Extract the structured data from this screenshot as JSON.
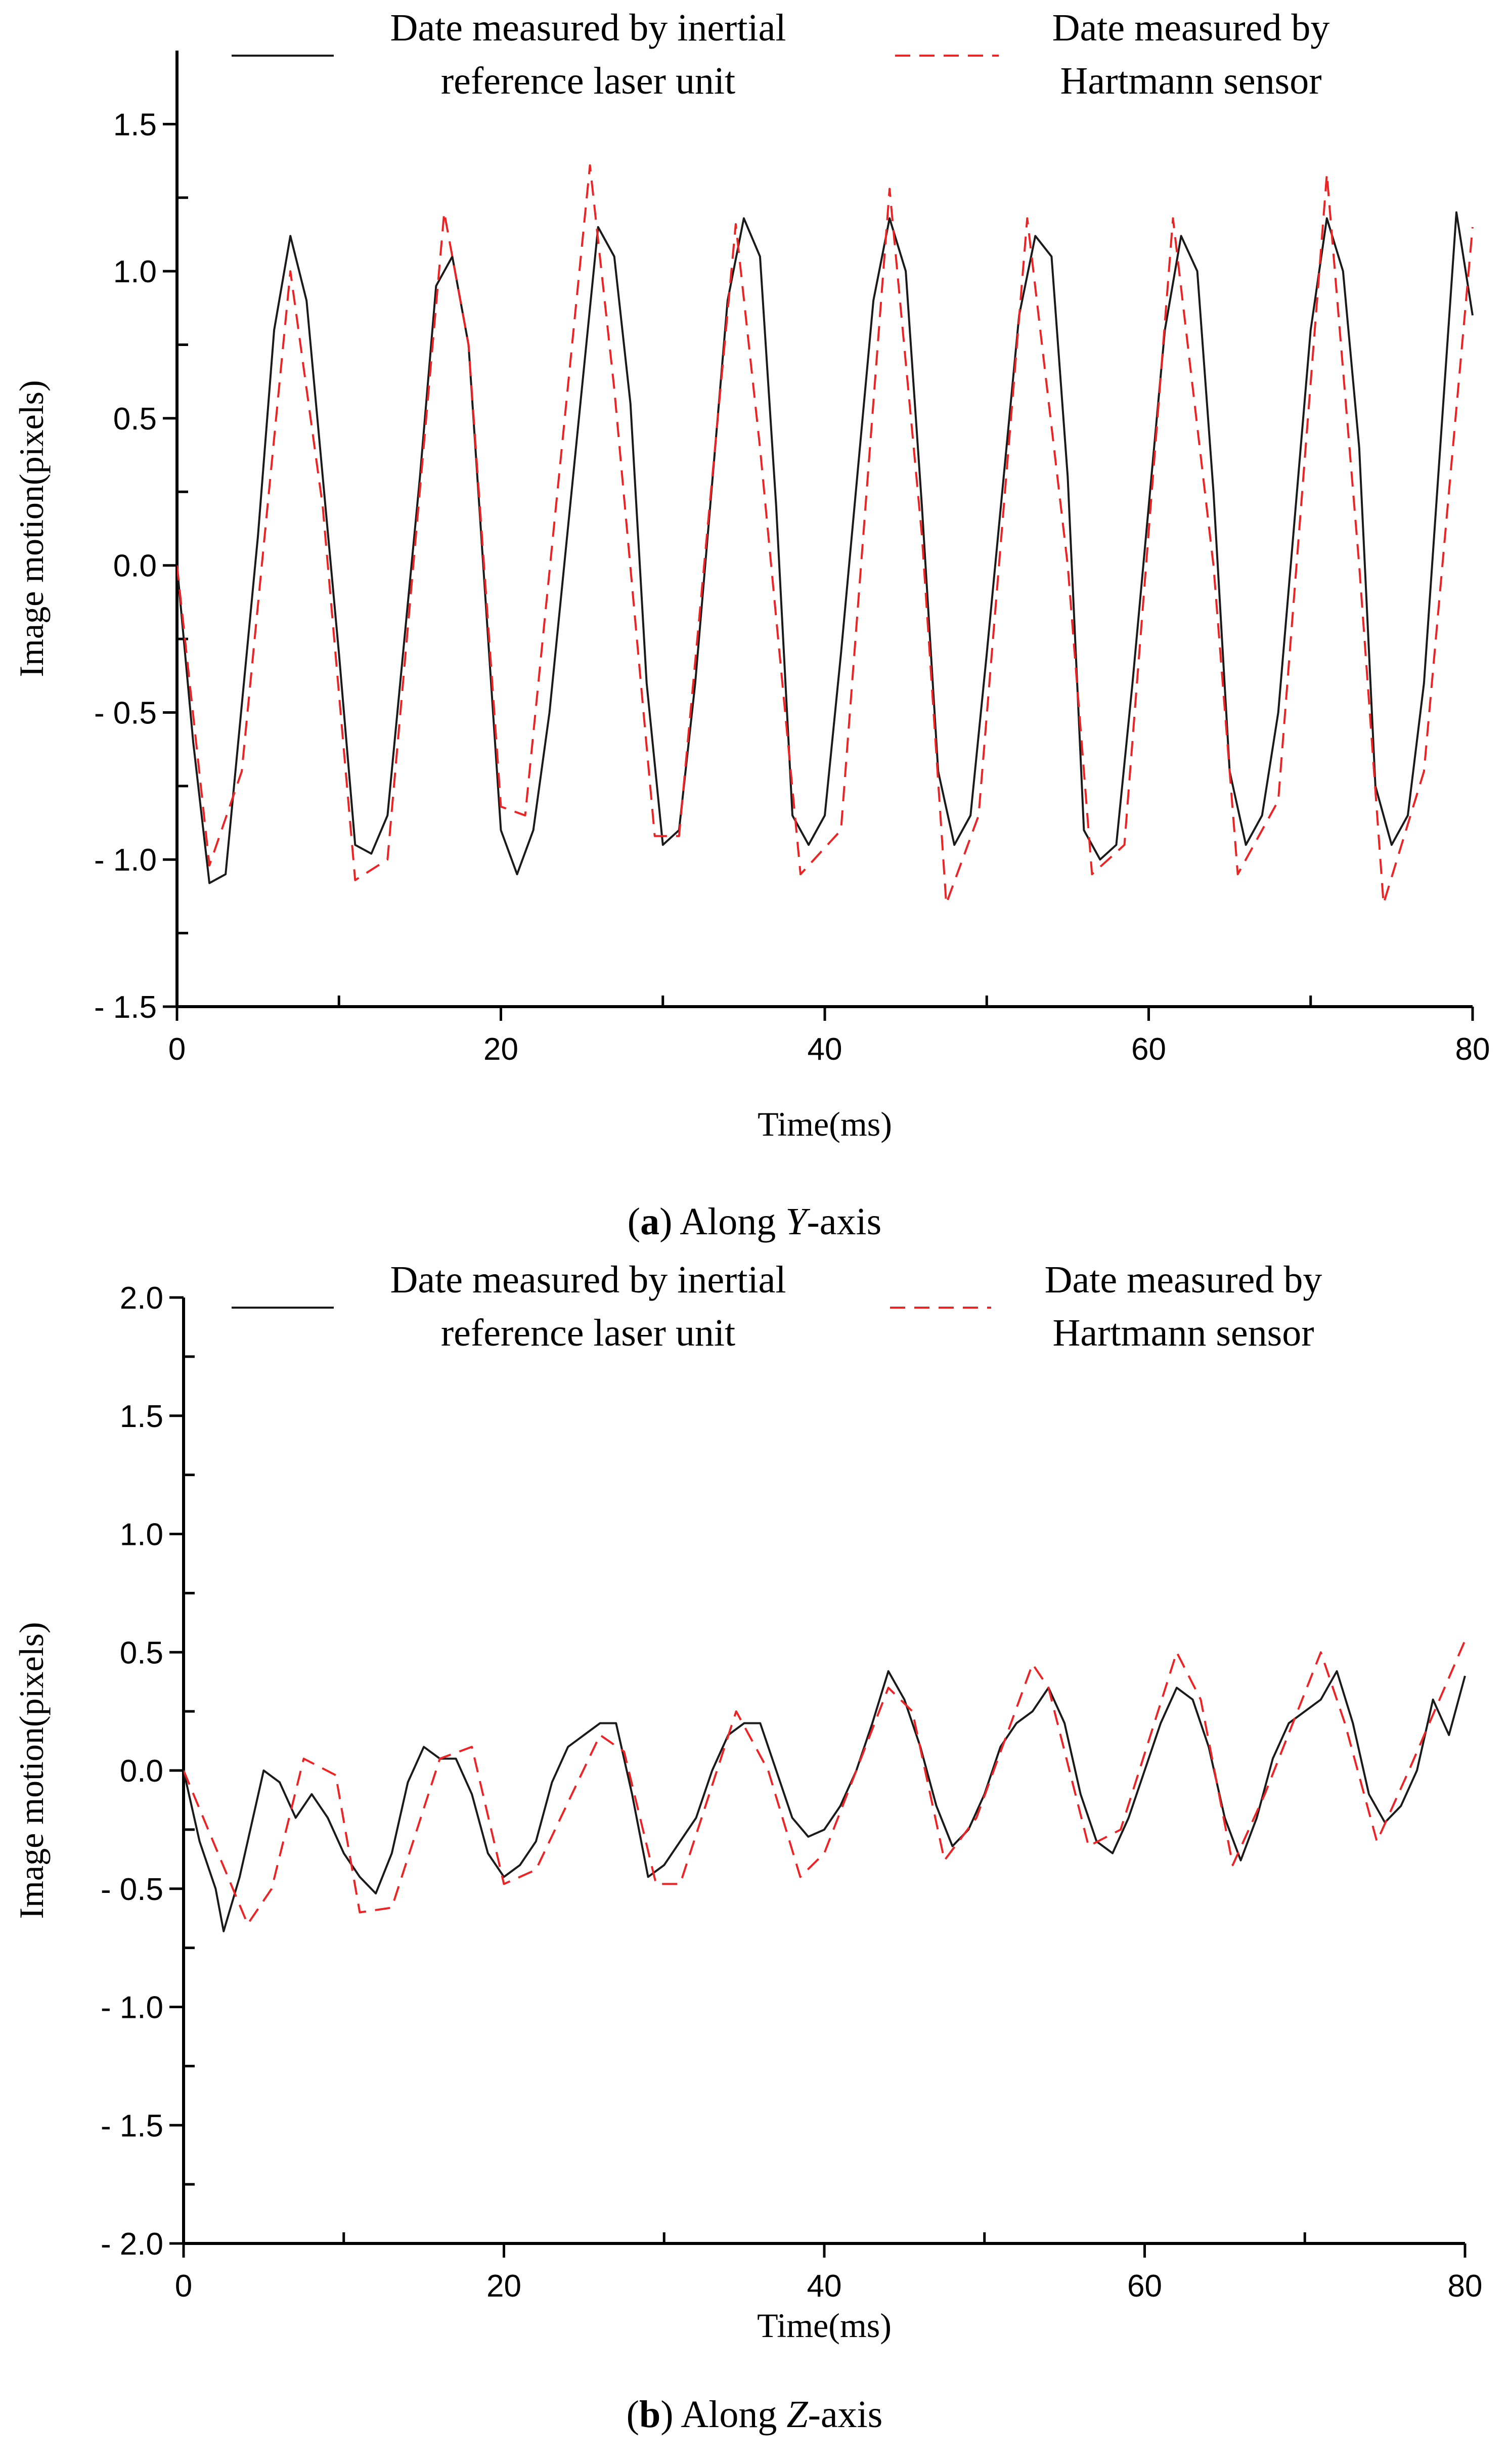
{
  "chart_data": [
    {
      "type": "line",
      "caption": {
        "label": "a",
        "text": " Along ",
        "axis": "Y",
        "suffix": "-axis"
      },
      "xlabel": "Time(ms)",
      "ylabel": "Image motion(pixels)",
      "xlim": [
        0,
        80
      ],
      "ylim": [
        -1.5,
        1.75
      ],
      "x_ticks": [
        0,
        20,
        40,
        60,
        80
      ],
      "x_tick_labels": [
        "0",
        "20",
        "40",
        "60",
        "80"
      ],
      "y_ticks": [
        -1.5,
        -1.0,
        -0.5,
        0.0,
        0.5,
        1.0,
        1.5
      ],
      "y_tick_labels": [
        "- 1.5",
        "- 1.0",
        "- 0.5",
        "0.0",
        "0.5",
        "1.0",
        "1.5"
      ],
      "legend": [
        {
          "name": "Date measured by inertial reference laser unit",
          "lines": [
            "Date measured by inertial",
            "reference laser unit"
          ],
          "color": "#1a1a1a",
          "style": "solid"
        },
        {
          "name": "Date measured by Hartmann sensor",
          "lines": [
            "Date measured by",
            "Hartmann sensor"
          ],
          "color": "#ee2222",
          "style": "dashed"
        }
      ],
      "series": [
        {
          "name": "Date measured by inertial reference laser unit",
          "color": "#1a1a1a",
          "x": [
            0,
            1,
            2,
            3,
            5,
            6,
            7,
            8,
            10,
            11,
            12,
            13,
            15,
            16,
            17,
            18,
            20,
            21,
            22,
            23,
            25,
            26,
            27,
            28,
            29,
            30,
            31,
            32,
            34,
            35,
            36,
            37,
            38,
            39,
            40,
            41,
            43,
            44,
            45,
            46,
            47,
            48,
            49,
            50,
            52,
            53,
            54,
            55,
            56,
            57,
            58,
            59,
            61,
            62,
            63,
            64,
            65,
            66,
            67,
            68,
            70,
            71,
            72,
            73,
            74,
            75,
            76,
            77,
            79,
            80
          ],
          "y": [
            0.0,
            -0.6,
            -1.08,
            -1.05,
            0.1,
            0.8,
            1.12,
            0.9,
            -0.3,
            -0.95,
            -0.98,
            -0.85,
            0.3,
            0.95,
            1.05,
            0.75,
            -0.9,
            -1.05,
            -0.9,
            -0.5,
            0.6,
            1.15,
            1.05,
            0.55,
            -0.4,
            -0.95,
            -0.9,
            -0.4,
            0.9,
            1.18,
            1.05,
            0.2,
            -0.85,
            -0.95,
            -0.85,
            -0.3,
            0.9,
            1.18,
            1.0,
            0.2,
            -0.7,
            -0.95,
            -0.85,
            -0.3,
            0.85,
            1.12,
            1.05,
            0.3,
            -0.9,
            -1.0,
            -0.95,
            -0.4,
            0.8,
            1.12,
            1.0,
            0.25,
            -0.7,
            -0.95,
            -0.85,
            -0.5,
            0.8,
            1.18,
            1.0,
            0.4,
            -0.75,
            -0.95,
            -0.85,
            -0.4,
            1.2,
            0.85
          ]
        },
        {
          "name": "Date measured by Hartmann sensor",
          "color": "#ee2222",
          "x": [
            0,
            2,
            4,
            7,
            9,
            11,
            13,
            16.5,
            18,
            20,
            21.5,
            25.5,
            27,
            29.5,
            31,
            34.5,
            36,
            38.5,
            41,
            44,
            46,
            47.5,
            49.5,
            52.5,
            55,
            56.5,
            58.5,
            61.5,
            64,
            65.5,
            68,
            71,
            73,
            74.5,
            77,
            80
          ],
          "y": [
            0.0,
            -1.02,
            -0.7,
            1.0,
            0.2,
            -1.07,
            -1.0,
            1.2,
            0.75,
            -0.82,
            -0.85,
            1.36,
            0.6,
            -0.92,
            -0.92,
            1.16,
            0.4,
            -1.05,
            -0.9,
            1.28,
            0.1,
            -1.15,
            -0.85,
            1.18,
            0.0,
            -1.05,
            -0.95,
            1.18,
            0.0,
            -1.05,
            -0.8,
            1.33,
            0.0,
            -1.15,
            -0.7,
            1.15
          ]
        }
      ]
    },
    {
      "type": "line",
      "caption": {
        "label": "b",
        "text": " Along ",
        "axis": "Z",
        "suffix": "-axis"
      },
      "xlabel": "Time(ms)",
      "ylabel": "Image motion(pixels)",
      "xlim": [
        0,
        80
      ],
      "ylim": [
        -2.0,
        2.0
      ],
      "x_ticks": [
        0,
        20,
        40,
        60,
        80
      ],
      "x_tick_labels": [
        "0",
        "20",
        "40",
        "60",
        "80"
      ],
      "y_ticks": [
        -2.0,
        -1.5,
        -1.0,
        -0.5,
        0.0,
        0.5,
        1.0,
        1.5,
        2.0
      ],
      "y_tick_labels": [
        "- 2.0",
        "- 1.5",
        "- 1.0",
        "- 0.5",
        "0.0",
        "0.5",
        "1.0",
        "1.5",
        "2.0"
      ],
      "legend": [
        {
          "name": "Date measured by inertial reference laser unit",
          "lines": [
            "Date measured by inertial",
            "reference laser unit"
          ],
          "color": "#1a1a1a",
          "style": "solid"
        },
        {
          "name": "Date measured by Hartmann sensor",
          "lines": [
            "Date measured by",
            "Hartmann sensor"
          ],
          "color": "#ee2222",
          "style": "dashed"
        }
      ],
      "series": [
        {
          "name": "Date measured by inertial reference laser unit",
          "color": "#1a1a1a",
          "x": [
            0,
            1,
            2,
            2.5,
            3.5,
            5,
            6,
            7,
            8,
            9,
            10,
            11,
            12,
            13,
            14,
            15,
            16,
            17,
            18,
            19,
            20,
            21,
            22,
            23,
            24,
            25,
            26,
            27,
            28,
            29,
            30,
            31,
            32,
            33,
            34,
            35,
            36,
            37,
            38,
            39,
            40,
            41,
            42,
            43,
            44,
            45,
            46,
            47,
            48,
            49,
            50,
            51,
            52,
            53,
            54,
            55,
            56,
            57,
            58,
            59,
            60,
            61,
            62,
            63,
            64,
            65,
            66,
            67,
            68,
            69,
            70,
            71,
            72,
            73,
            74,
            75,
            76,
            77,
            78,
            79,
            80
          ],
          "y": [
            0.0,
            -0.3,
            -0.5,
            -0.68,
            -0.45,
            0.0,
            -0.05,
            -0.2,
            -0.1,
            -0.2,
            -0.35,
            -0.45,
            -0.52,
            -0.35,
            -0.05,
            0.1,
            0.05,
            0.05,
            -0.1,
            -0.35,
            -0.45,
            -0.4,
            -0.3,
            -0.05,
            0.1,
            0.15,
            0.2,
            0.2,
            -0.1,
            -0.45,
            -0.4,
            -0.3,
            -0.2,
            0.0,
            0.15,
            0.2,
            0.2,
            0.0,
            -0.2,
            -0.28,
            -0.25,
            -0.15,
            0.0,
            0.2,
            0.42,
            0.3,
            0.1,
            -0.15,
            -0.32,
            -0.25,
            -0.1,
            0.1,
            0.2,
            0.25,
            0.35,
            0.2,
            -0.1,
            -0.3,
            -0.35,
            -0.2,
            0.0,
            0.2,
            0.35,
            0.3,
            0.1,
            -0.2,
            -0.38,
            -0.2,
            0.05,
            0.2,
            0.25,
            0.3,
            0.42,
            0.2,
            -0.1,
            -0.22,
            -0.15,
            0.0,
            0.3,
            0.15,
            0.4
          ]
        },
        {
          "name": "Date measured by Hartmann sensor",
          "color": "#ee2222",
          "x": [
            0,
            4,
            5.5,
            7.5,
            9.5,
            11,
            13,
            16,
            18,
            20,
            22,
            26,
            27.5,
            29.5,
            31,
            34.5,
            36.5,
            38.5,
            40,
            44,
            45.5,
            47.5,
            49.5,
            53,
            54,
            56.5,
            58.5,
            62,
            63.5,
            65.5,
            67.5,
            71,
            72.5,
            74.5,
            76.5,
            80
          ],
          "y": [
            0.0,
            -0.65,
            -0.5,
            0.05,
            -0.02,
            -0.6,
            -0.58,
            0.05,
            0.1,
            -0.48,
            -0.42,
            0.15,
            0.08,
            -0.48,
            -0.48,
            0.25,
            0.0,
            -0.45,
            -0.35,
            0.35,
            0.25,
            -0.38,
            -0.2,
            0.45,
            0.35,
            -0.32,
            -0.25,
            0.5,
            0.3,
            -0.4,
            -0.1,
            0.5,
            0.2,
            -0.3,
            0.0,
            0.55
          ]
        }
      ]
    }
  ]
}
